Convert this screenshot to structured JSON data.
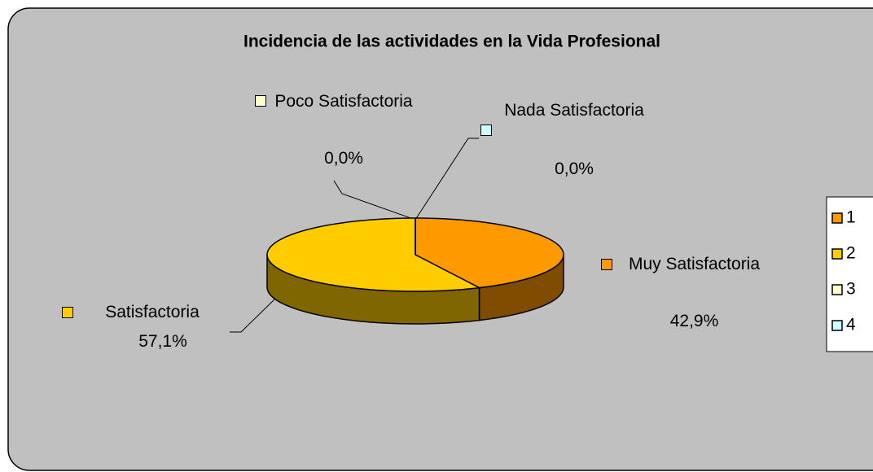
{
  "chart_data": {
    "type": "pie3d",
    "title": "Incidencia de las actividades en la Vida Profesional",
    "categories": [
      "Muy Satisfactoria",
      "Satisfactoria",
      "Poco Satisfactoria",
      "Nada Satisfactoria"
    ],
    "values": [
      42.9,
      57.1,
      0,
      0
    ],
    "value_labels": [
      "42,9%",
      "57,1%",
      "0,0%",
      "0,0%"
    ],
    "colors": [
      "#ff9900",
      "#ffcc00",
      "#ffffcc",
      "#ccffff"
    ],
    "side_colors": [
      "#804c00",
      "#806600",
      "#808066",
      "#668080"
    ],
    "legend": {
      "entries": [
        "1",
        "2",
        "3",
        "4"
      ],
      "position": "right"
    }
  }
}
